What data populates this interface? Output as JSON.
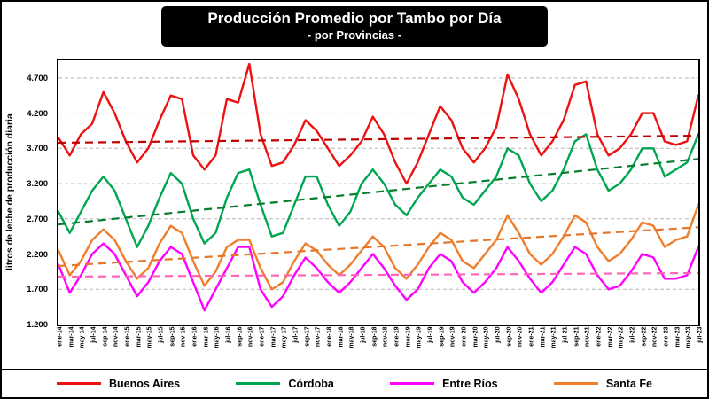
{
  "figure": {
    "title": "Producción Promedio por Tambo por Día",
    "subtitle": "- por Provincias -",
    "y_axis_title": "litros de leche de producción diaria"
  },
  "chart_data": {
    "type": "line",
    "title": "Producción Promedio por Tambo por Día - por Provincias -",
    "xlabel": "",
    "ylabel": "litros de leche de producción diaria",
    "ylim": [
      1200,
      4950
    ],
    "grid": "horizontal-dashed",
    "legend_position": "bottom",
    "yticks": [
      {
        "value": 1200,
        "label": "1.200"
      },
      {
        "value": 1700,
        "label": "1.700"
      },
      {
        "value": 2200,
        "label": "2.200"
      },
      {
        "value": 2700,
        "label": "2.700"
      },
      {
        "value": 3200,
        "label": "3.200"
      },
      {
        "value": 3700,
        "label": "3.700"
      },
      {
        "value": 4200,
        "label": "4.200"
      },
      {
        "value": 4700,
        "label": "4.700"
      }
    ],
    "categories": [
      "ene-14",
      "mar-14",
      "may-14",
      "jul-14",
      "sep-14",
      "nov-14",
      "ene-15",
      "mar-15",
      "may-15",
      "jul-15",
      "sep-15",
      "nov-15",
      "ene-16",
      "mar-16",
      "may-16",
      "jul-16",
      "sep-16",
      "nov-16",
      "ene-17",
      "mar-17",
      "may-17",
      "jul-17",
      "sep-17",
      "nov-17",
      "ene-18",
      "mar-18",
      "may-18",
      "jul-18",
      "sep-18",
      "nov-18",
      "ene-19",
      "mar-19",
      "may-19",
      "jul-19",
      "sep-19",
      "nov-19",
      "ene-20",
      "mar-20",
      "may-20",
      "jul-20",
      "sep-20",
      "nov-20",
      "ene-21",
      "mar-21",
      "may-21",
      "jul-21",
      "sep-21",
      "nov-21",
      "ene-22",
      "mar-22",
      "may-22",
      "jul-22",
      "sep-22",
      "nov-22",
      "ene-23",
      "mar-23",
      "may-23",
      "jul-23"
    ],
    "series": [
      {
        "name": "Buenos Aires",
        "color": "#ee1111",
        "values": [
          3850,
          3600,
          3900,
          4050,
          4500,
          4200,
          3800,
          3500,
          3700,
          4100,
          4450,
          4400,
          3600,
          3400,
          3600,
          4400,
          4350,
          4900,
          3900,
          3450,
          3500,
          3750,
          4100,
          3950,
          3700,
          3450,
          3600,
          3800,
          4150,
          3900,
          3500,
          3200,
          3500,
          3900,
          4300,
          4100,
          3700,
          3500,
          3700,
          4000,
          4750,
          4400,
          3900,
          3600,
          3800,
          4100,
          4600,
          4650,
          3900,
          3600,
          3700,
          3900,
          4200,
          4200,
          3800,
          3750,
          3800,
          4450
        ],
        "trend": {
          "start": 3780,
          "end": 3880,
          "color": "#c00000"
        }
      },
      {
        "name": "Córdoba",
        "color": "#00a651",
        "values": [
          2800,
          2500,
          2800,
          3100,
          3300,
          3100,
          2700,
          2300,
          2600,
          3000,
          3350,
          3200,
          2700,
          2350,
          2500,
          3000,
          3350,
          3400,
          2900,
          2450,
          2500,
          2900,
          3300,
          3300,
          2900,
          2600,
          2800,
          3200,
          3400,
          3200,
          2900,
          2750,
          3000,
          3200,
          3400,
          3300,
          3000,
          2900,
          3100,
          3300,
          3700,
          3600,
          3200,
          2950,
          3100,
          3400,
          3800,
          3900,
          3400,
          3100,
          3200,
          3400,
          3700,
          3700,
          3300,
          3400,
          3500,
          3900
        ],
        "trend": {
          "start": 2620,
          "end": 3550,
          "color": "#077d2e"
        }
      },
      {
        "name": "Entre Ríos",
        "color": "#ff00ff",
        "values": [
          2050,
          1650,
          1900,
          2200,
          2350,
          2200,
          1900,
          1600,
          1800,
          2100,
          2300,
          2200,
          1800,
          1400,
          1700,
          2000,
          2300,
          2300,
          1700,
          1450,
          1600,
          1900,
          2150,
          2000,
          1800,
          1650,
          1800,
          2000,
          2200,
          2000,
          1750,
          1550,
          1700,
          2000,
          2200,
          2100,
          1800,
          1650,
          1800,
          2000,
          2300,
          2100,
          1850,
          1650,
          1800,
          2050,
          2300,
          2200,
          1900,
          1700,
          1750,
          1950,
          2200,
          2150,
          1850,
          1850,
          1900,
          2300
        ],
        "trend": {
          "start": 1880,
          "end": 1930,
          "color": "#ff66b8"
        }
      },
      {
        "name": "Santa Fe",
        "color": "#ef7d2c",
        "values": [
          2250,
          1900,
          2100,
          2400,
          2550,
          2400,
          2100,
          1850,
          2000,
          2350,
          2600,
          2500,
          2100,
          1750,
          1950,
          2300,
          2400,
          2400,
          2000,
          1700,
          1800,
          2100,
          2350,
          2250,
          2050,
          1900,
          2050,
          2250,
          2450,
          2300,
          2000,
          1850,
          2050,
          2300,
          2500,
          2400,
          2100,
          2000,
          2200,
          2400,
          2750,
          2500,
          2200,
          2050,
          2200,
          2450,
          2750,
          2650,
          2300,
          2100,
          2200,
          2400,
          2650,
          2600,
          2300,
          2400,
          2450,
          2900
        ],
        "trend": {
          "start": 2030,
          "end": 2580,
          "color": "#e8762a"
        }
      }
    ]
  }
}
